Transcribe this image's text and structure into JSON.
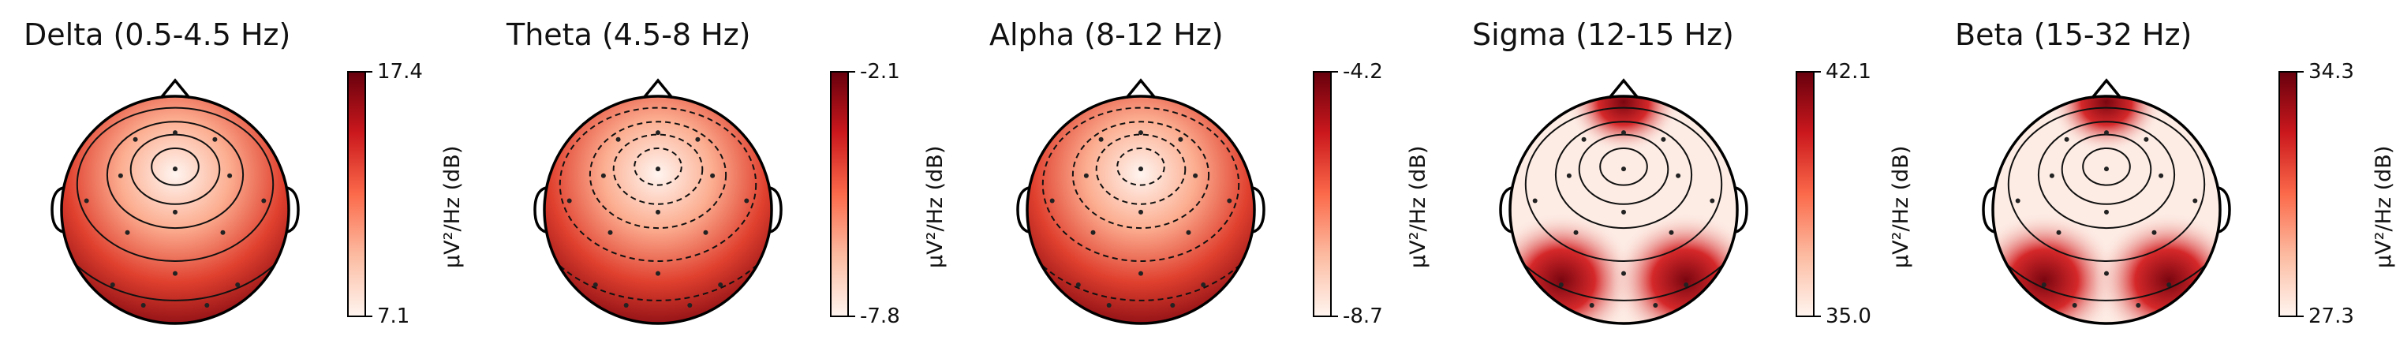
{
  "chart_data": [
    {
      "type": "heatmap",
      "title": "Delta (0.5-4.5 Hz)",
      "colorbar": {
        "label": "µV²/Hz (dB)",
        "ticks": [
          "17.4",
          "7.1"
        ],
        "range": [
          7.1,
          17.4
        ]
      },
      "colormap": "Reds",
      "hotspots": [
        {
          "where": "frontal-center",
          "level": "low"
        }
      ],
      "contour_style": "solid"
    },
    {
      "type": "heatmap",
      "title": "Theta (4.5-8 Hz)",
      "colorbar": {
        "label": "µV²/Hz (dB)",
        "ticks": [
          "-2.1",
          "-7.8"
        ],
        "range": [
          -7.8,
          -2.1
        ]
      },
      "colormap": "Reds",
      "hotspots": [
        {
          "where": "frontal-center",
          "level": "low"
        }
      ],
      "contour_style": "dashed"
    },
    {
      "type": "heatmap",
      "title": "Alpha (8-12 Hz)",
      "colorbar": {
        "label": "µV²/Hz (dB)",
        "ticks": [
          "-4.2",
          "-8.7"
        ],
        "range": [
          -8.7,
          -4.2
        ]
      },
      "colormap": "Reds",
      "hotspots": [
        {
          "where": "frontal-center",
          "level": "low"
        }
      ],
      "contour_style": "dashed"
    },
    {
      "type": "heatmap",
      "title": "Sigma (12-15 Hz)",
      "colorbar": {
        "label": "µV²/Hz (dB)",
        "ticks": [
          "42.1",
          "35.0"
        ],
        "range": [
          35.0,
          42.1
        ]
      },
      "colormap": "Reds",
      "hotspots": [
        {
          "where": "occipital-left",
          "level": "high"
        },
        {
          "where": "occipital-right",
          "level": "high"
        },
        {
          "where": "frontal-poles",
          "level": "high"
        }
      ],
      "contour_style": "solid"
    },
    {
      "type": "heatmap",
      "title": "Beta (15-32 Hz)",
      "colorbar": {
        "label": "µV²/Hz (dB)",
        "ticks": [
          "34.3",
          "27.3"
        ],
        "range": [
          27.3,
          34.3
        ]
      },
      "colormap": "Reds",
      "hotspots": [
        {
          "where": "occipital-left",
          "level": "high"
        },
        {
          "where": "occipital-right",
          "level": "high"
        },
        {
          "where": "frontal-poles",
          "level": "high"
        }
      ],
      "contour_style": "solid"
    }
  ],
  "colors": {
    "high": "#8b0d14",
    "mid": "#e8432e",
    "low": "#fff5f0",
    "outline": "#000000"
  }
}
